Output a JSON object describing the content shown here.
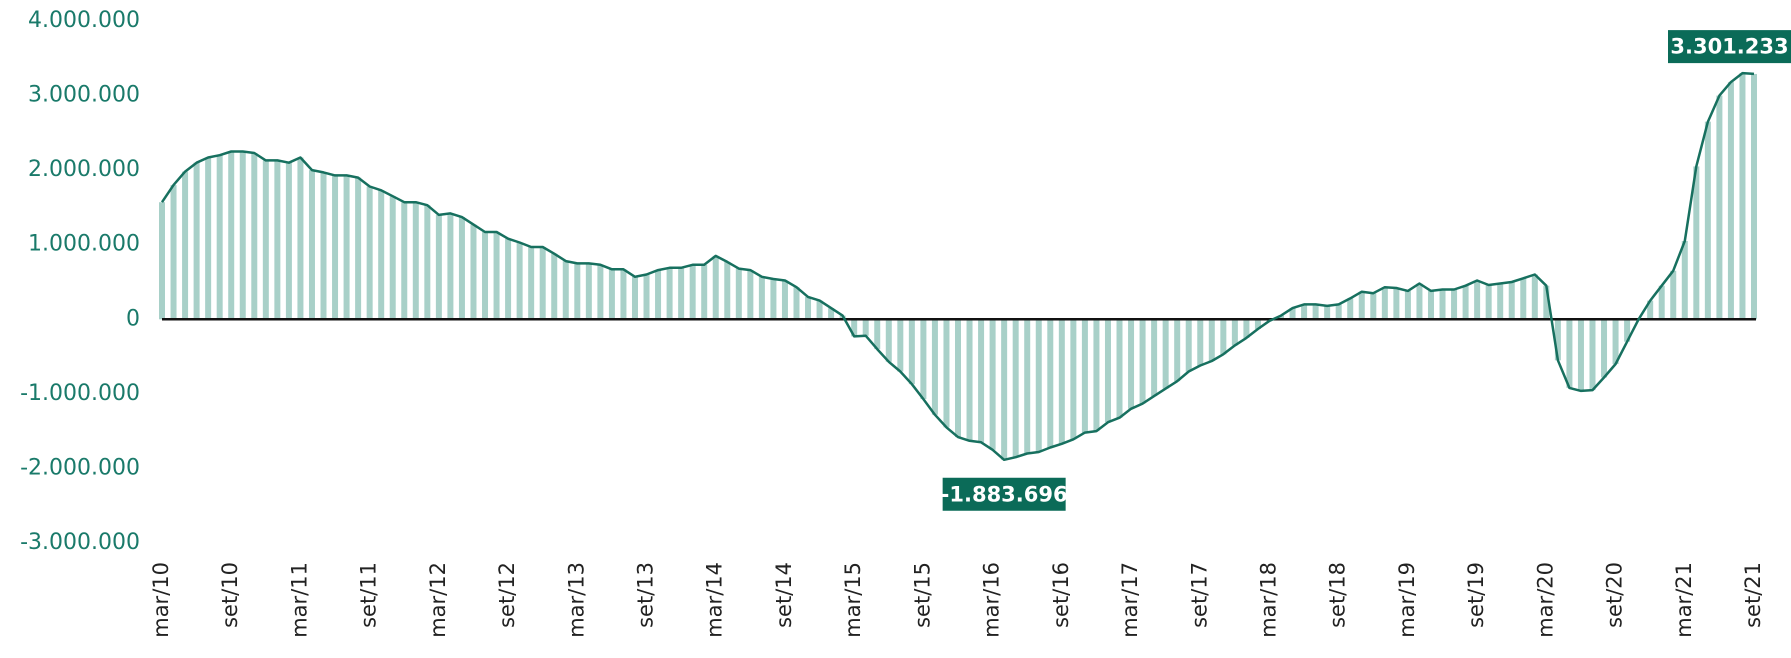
{
  "chart_data": {
    "type": "bar-line",
    "categories": [
      "mar/10",
      null,
      null,
      null,
      null,
      null,
      "set/10",
      null,
      null,
      null,
      null,
      null,
      "mar/11",
      null,
      null,
      null,
      null,
      null,
      "set/11",
      null,
      null,
      null,
      null,
      null,
      "mar/12",
      null,
      null,
      null,
      null,
      null,
      "set/12",
      null,
      null,
      null,
      null,
      null,
      "mar/13",
      null,
      null,
      null,
      null,
      null,
      "set/13",
      null,
      null,
      null,
      null,
      null,
      "mar/14",
      null,
      null,
      null,
      null,
      null,
      "set/14",
      null,
      null,
      null,
      null,
      null,
      "mar/15",
      null,
      null,
      null,
      null,
      null,
      "set/15",
      null,
      null,
      null,
      null,
      null,
      "mar/16",
      null,
      null,
      null,
      null,
      null,
      "set/16",
      null,
      null,
      null,
      null,
      null,
      "mar/17",
      null,
      null,
      null,
      null,
      null,
      "set/17",
      null,
      null,
      null,
      null,
      null,
      "mar/18",
      null,
      null,
      null,
      null,
      null,
      "set/18",
      null,
      null,
      null,
      null,
      null,
      "mar/19",
      null,
      null,
      null,
      null,
      null,
      "set/19",
      null,
      null,
      null,
      null,
      null,
      "mar/20",
      null,
      null,
      null,
      null,
      null,
      "set/20",
      null,
      null,
      null,
      null,
      null,
      "mar/21",
      null,
      null,
      null,
      null,
      null,
      "set/21"
    ],
    "values": [
      1570000,
      1800000,
      1980000,
      2100000,
      2170000,
      2200000,
      2250000,
      2250000,
      2230000,
      2130000,
      2130000,
      2100000,
      2170000,
      2000000,
      1970000,
      1930000,
      1930000,
      1900000,
      1780000,
      1730000,
      1650000,
      1570000,
      1570000,
      1530000,
      1400000,
      1420000,
      1370000,
      1270000,
      1170000,
      1170000,
      1080000,
      1030000,
      970000,
      970000,
      880000,
      780000,
      750000,
      750000,
      730000,
      670000,
      670000,
      570000,
      600000,
      660000,
      690000,
      690000,
      730000,
      730000,
      850000,
      770000,
      680000,
      660000,
      570000,
      540000,
      520000,
      430000,
      300000,
      250000,
      150000,
      50000,
      -230000,
      -220000,
      -400000,
      -570000,
      -700000,
      -870000,
      -1070000,
      -1280000,
      -1450000,
      -1580000,
      -1630000,
      -1650000,
      -1750000,
      -1883696,
      -1850000,
      -1800000,
      -1780000,
      -1720000,
      -1670000,
      -1610000,
      -1520000,
      -1500000,
      -1380000,
      -1320000,
      -1200000,
      -1130000,
      -1030000,
      -930000,
      -830000,
      -700000,
      -620000,
      -560000,
      -470000,
      -350000,
      -250000,
      -130000,
      -20000,
      50000,
      150000,
      200000,
      200000,
      180000,
      200000,
      280000,
      370000,
      350000,
      430000,
      420000,
      380000,
      480000,
      380000,
      400000,
      400000,
      450000,
      520000,
      460000,
      480000,
      500000,
      550000,
      600000,
      450000,
      -550000,
      -920000,
      -960000,
      -950000,
      -780000,
      -600000,
      -300000,
      0,
      250000,
      450000,
      650000,
      1050000,
      2050000,
      2650000,
      3000000,
      3180000,
      3301233,
      3290000
    ],
    "value_labels": [
      null,
      null,
      null,
      null,
      null,
      null,
      null,
      null,
      null,
      null,
      null,
      null,
      null,
      null,
      null,
      null,
      null,
      null,
      null,
      null,
      null,
      null,
      null,
      null,
      null,
      null,
      null,
      null,
      null,
      null,
      null,
      null,
      null,
      null,
      null,
      null,
      null,
      null,
      null,
      null,
      null,
      null,
      null,
      null,
      null,
      null,
      null,
      null,
      null,
      null,
      null,
      null,
      null,
      null,
      null,
      null,
      null,
      null,
      null,
      null,
      null,
      null,
      null,
      null,
      null,
      null,
      null,
      null,
      null,
      null,
      null,
      null,
      null,
      "-1.883.696",
      null,
      null,
      null,
      null,
      null,
      null,
      null,
      null,
      null,
      null,
      null,
      null,
      null,
      null,
      null,
      null,
      null,
      null,
      null,
      null,
      null,
      null,
      null,
      null,
      null,
      null,
      null,
      null,
      null,
      null,
      null,
      null,
      null,
      null,
      null,
      null,
      null,
      null,
      null,
      null,
      null,
      null,
      null,
      null,
      null,
      null,
      null,
      null,
      null,
      null,
      null,
      null,
      null,
      null,
      null,
      null,
      null,
      null,
      null,
      null,
      null,
      null,
      null,
      "3.301.233",
      null
    ],
    "bar_color": "#a8d0c8",
    "line_color": "#17705f",
    "label_color": "#0b6b58",
    "ylim": [
      -3000000,
      4000000
    ],
    "yticks": [
      {
        "value": -3000000,
        "label": "-3.000.000"
      },
      {
        "value": -2000000,
        "label": "-2.000.000"
      },
      {
        "value": -1000000,
        "label": "-1.000.000"
      },
      0,
      {
        "value": 1000000,
        "label": "1.000.000"
      },
      {
        "value": 2000000,
        "label": "2.000.000"
      },
      {
        "value": 3000000,
        "label": "3.000.000"
      },
      {
        "value": 4000000,
        "label": "4.000.000"
      }
    ]
  }
}
